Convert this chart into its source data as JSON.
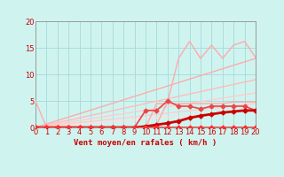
{
  "bg_color": "#cff4f0",
  "grid_color": "#aadddd",
  "xlabel": "Vent moyen/en rafales ( km/h )",
  "xlim": [
    0,
    20
  ],
  "ylim": [
    0,
    20
  ],
  "yticks": [
    0,
    5,
    10,
    15,
    20
  ],
  "xticks": [
    0,
    1,
    2,
    3,
    4,
    5,
    6,
    7,
    8,
    9,
    10,
    11,
    12,
    13,
    14,
    15,
    16,
    17,
    18,
    19,
    20
  ],
  "lines": [
    {
      "x": [
        0,
        20
      ],
      "y": [
        0,
        13.0
      ],
      "color": "#ffaaaa",
      "lw": 1.0,
      "marker": null,
      "ms": 0,
      "zorder": 3
    },
    {
      "x": [
        0,
        20
      ],
      "y": [
        0,
        9.0
      ],
      "color": "#ffbbbb",
      "lw": 1.0,
      "marker": null,
      "ms": 0,
      "zorder": 3
    },
    {
      "x": [
        0,
        20
      ],
      "y": [
        0,
        6.5
      ],
      "color": "#ffcccc",
      "lw": 1.0,
      "marker": null,
      "ms": 0,
      "zorder": 3
    },
    {
      "x": [
        0,
        20
      ],
      "y": [
        0,
        4.5
      ],
      "color": "#ffcccc",
      "lw": 1.0,
      "marker": null,
      "ms": 0,
      "zorder": 3
    },
    {
      "x": [
        0,
        20
      ],
      "y": [
        0,
        3.2
      ],
      "color": "#ffdddd",
      "lw": 1.0,
      "marker": null,
      "ms": 0,
      "zorder": 3
    },
    {
      "x": [
        0,
        1,
        2,
        3,
        4,
        5,
        6,
        7,
        8,
        9,
        10,
        11,
        12,
        13,
        14,
        15,
        16,
        17,
        18,
        19,
        20
      ],
      "y": [
        0,
        0,
        0,
        0,
        0,
        0,
        0,
        0,
        0,
        0,
        0,
        0.5,
        4.8,
        13.0,
        16.2,
        13.0,
        15.5,
        13.0,
        15.5,
        16.2,
        13.2
      ],
      "color": "#ffaaaa",
      "lw": 1.0,
      "marker": null,
      "ms": 0,
      "zorder": 5
    },
    {
      "x": [
        0,
        1,
        2,
        3,
        4,
        5,
        6,
        7,
        8,
        9,
        10,
        11,
        12,
        13,
        14,
        15,
        16,
        17,
        18,
        19,
        20
      ],
      "y": [
        5.0,
        0,
        0,
        0,
        0,
        0,
        0,
        0,
        0,
        0,
        0,
        4.5,
        4.5,
        4.5,
        4.5,
        4.5,
        4.5,
        4.5,
        4.8,
        4.8,
        4.8
      ],
      "color": "#ffaaaa",
      "lw": 1.0,
      "marker": null,
      "ms": 0,
      "zorder": 4
    },
    {
      "x": [
        0,
        1,
        2,
        3,
        4,
        5,
        6,
        7,
        8,
        9,
        10,
        11,
        12,
        13,
        14,
        15,
        16,
        17,
        18,
        19,
        20
      ],
      "y": [
        0,
        0,
        0,
        0,
        0,
        0,
        0,
        0,
        0,
        0,
        3.2,
        3.2,
        5.0,
        4.0,
        4.0,
        3.5,
        4.0,
        4.0,
        4.0,
        4.0,
        3.2
      ],
      "color": "#ee4444",
      "lw": 1.2,
      "marker": "D",
      "ms": 2.5,
      "zorder": 8
    },
    {
      "x": [
        0,
        1,
        2,
        3,
        4,
        5,
        6,
        7,
        8,
        9,
        10,
        11,
        12,
        13,
        14,
        15,
        16,
        17,
        18,
        19,
        20
      ],
      "y": [
        0,
        0,
        0,
        0,
        0,
        0,
        0,
        0,
        0,
        0,
        0.2,
        0.5,
        0.8,
        1.2,
        1.8,
        2.2,
        2.5,
        2.8,
        3.0,
        3.2,
        3.2
      ],
      "color": "#cc0000",
      "lw": 2.0,
      "marker": "D",
      "ms": 2.5,
      "zorder": 9
    },
    {
      "x": [
        0,
        1,
        2,
        3,
        4,
        5,
        6,
        7,
        8,
        9,
        10,
        11,
        12,
        13,
        14,
        15,
        16,
        17,
        18,
        19,
        20
      ],
      "y": [
        0,
        0,
        0,
        0,
        0,
        0,
        0,
        0,
        0,
        0,
        0,
        0,
        0,
        0,
        0,
        0,
        0,
        0,
        0,
        0,
        0
      ],
      "color": "#ff3333",
      "lw": 2.0,
      "marker": "D",
      "ms": 2.5,
      "zorder": 10
    }
  ]
}
